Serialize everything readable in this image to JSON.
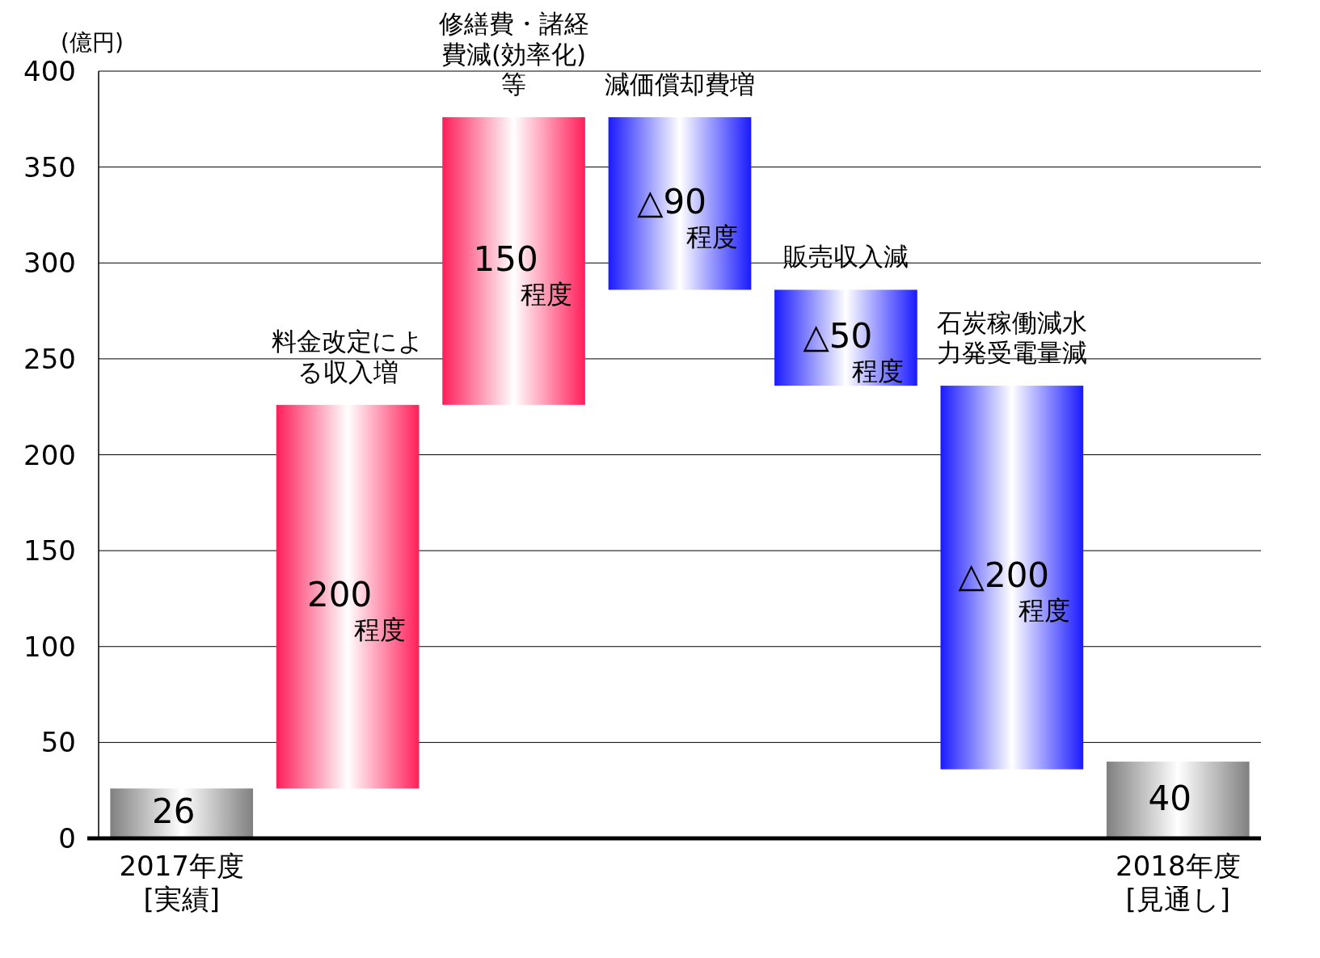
{
  "chart_data": {
    "type": "bar",
    "ylabel": "(億円)",
    "categories": [
      "2017年度[実績]",
      "料金改定による収入増",
      "修繕費・諸経費減(効率化)等",
      "減価償却費増",
      "販売収入減",
      "石炭稼働減水力発受電量減",
      "2018年度[見通し]"
    ],
    "values": [
      26,
      200,
      150,
      -90,
      -50,
      -200,
      40
    ],
    "base": [
      0,
      26,
      226,
      376,
      286,
      236,
      0
    ],
    "colors": [
      "#808080",
      "#ff1f5a",
      "#ff1f5a",
      "#1a1aff",
      "#1a1aff",
      "#1a1aff",
      "#808080"
    ],
    "value_labels": [
      "26",
      "200程度",
      "150程度",
      "△90程度",
      "△50程度",
      "△200程度",
      "40"
    ],
    "ylim": [
      0,
      400
    ],
    "yticks": [
      0,
      50,
      100,
      150,
      200,
      250,
      300,
      350,
      400
    ],
    "grid": "y"
  }
}
